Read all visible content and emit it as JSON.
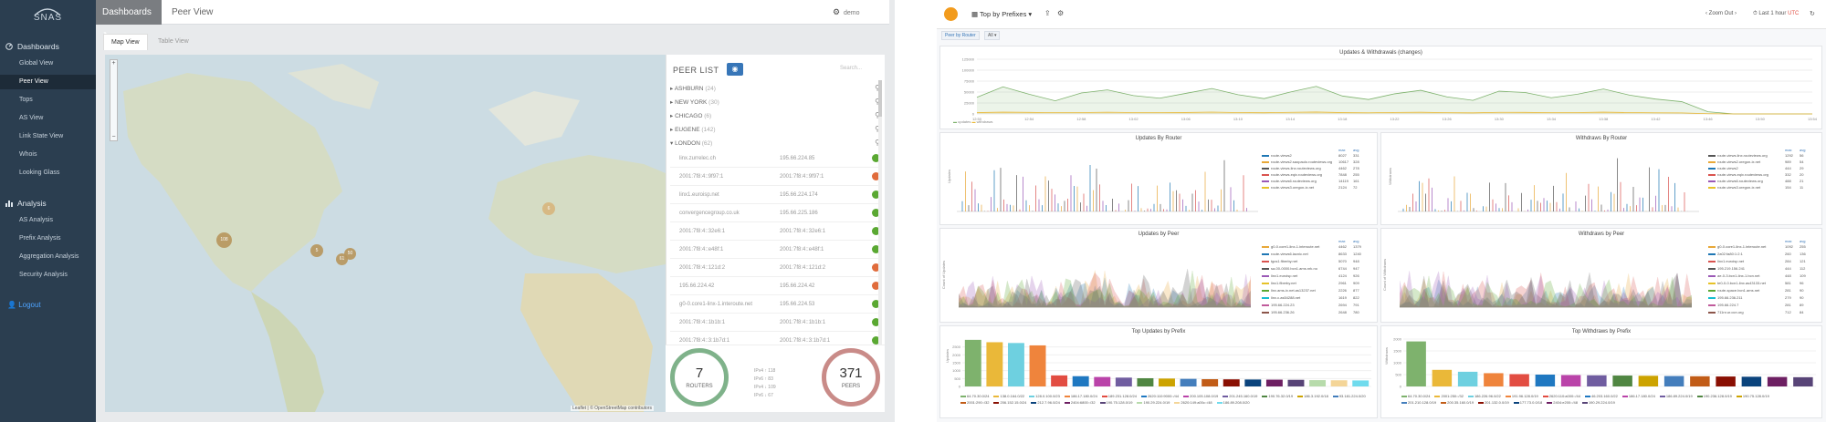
{
  "app": {
    "brand": "SNAS"
  },
  "sidebar": {
    "dashboards_label": "Dashboards",
    "items": [
      {
        "label": "Global View"
      },
      {
        "label": "Peer View"
      },
      {
        "label": "Tops"
      },
      {
        "label": "AS View"
      },
      {
        "label": "Link State View"
      },
      {
        "label": "Whois"
      },
      {
        "label": "Looking Glass"
      }
    ],
    "analysis_label": "Analysis",
    "analysis_items": [
      {
        "label": "AS Analysis"
      },
      {
        "label": "Prefix Analysis"
      },
      {
        "label": "Aggregation Analysis"
      },
      {
        "label": "Security Analysis"
      }
    ],
    "logout_label": "Logout"
  },
  "header": {
    "breadcrumb": "Dashboards",
    "title": "Peer View",
    "user": "demo"
  },
  "tabs": [
    {
      "label": "Map View"
    },
    {
      "label": "Table View"
    }
  ],
  "map": {
    "clusters": [
      "108",
      "5",
      "61",
      "50",
      "6"
    ],
    "attribution": "Leaflet | © OpenStreetMap contributors",
    "cluster_color": "#b8965c"
  },
  "peer_list": {
    "title": "PEER LIST",
    "search_placeholder": "Search...",
    "locations": [
      {
        "name": "ASHBURN",
        "count": "(24)"
      },
      {
        "name": "NEW YORK",
        "count": "(30)"
      },
      {
        "name": "CHICAGO",
        "count": "(6)"
      },
      {
        "name": "EUGENE",
        "count": "(142)"
      },
      {
        "name": "LONDON",
        "count": "(62)"
      }
    ],
    "peers": [
      {
        "name": "linx.zurrelec.ch",
        "ip": "195.66.224.85",
        "status": "#5aa832"
      },
      {
        "name": "2001:7f8:4::9f97:1",
        "ip": "2001:7f8:4::9f97:1",
        "status": "#e06c3c"
      },
      {
        "name": "linx1.euroisp.net",
        "ip": "195.66.224.174",
        "status": "#5aa832"
      },
      {
        "name": "convergencegroup.co.uk",
        "ip": "195.66.225.186",
        "status": "#5aa832"
      },
      {
        "name": "2001:7f8:4::32e6:1",
        "ip": "2001:7f8:4::32e6:1",
        "status": "#5aa832"
      },
      {
        "name": "2001:7f8:4::e48f:1",
        "ip": "2001:7f8:4::e48f:1",
        "status": "#5aa832"
      },
      {
        "name": "2001:7f8:4::121d:2",
        "ip": "2001:7f8:4::121d:2",
        "status": "#e06c3c"
      },
      {
        "name": "195.66.224.42",
        "ip": "195.66.224.42",
        "status": "#e06c3c"
      },
      {
        "name": "g0-0.core1-linx-1.interoute.net",
        "ip": "195.66.224.53",
        "status": "#5aa832"
      },
      {
        "name": "2001:7f8:4::1b1b:1",
        "ip": "2001:7f8:4::1b1b:1",
        "status": "#5aa832"
      },
      {
        "name": "2001:7f8:4::3:1b7d:1",
        "ip": "2001:7f8:4::3:1b7d:1",
        "status": "#5aa832"
      }
    ],
    "routers": {
      "value": "7",
      "label": "ROUTERS"
    },
    "peers_total": {
      "value": "371",
      "label": "PEERS"
    },
    "mini_stats": [
      "IPv4 ↑ 118",
      "IPv6 ↑ 83",
      "IPv4 ↓ 109",
      "IPv6 ↓ 67"
    ]
  },
  "grafana": {
    "dashboard_title": "Top by Prefixes",
    "zoom_label": "Zoom Out",
    "time_range": "Last 1 hour",
    "utc_label": "UTC",
    "filter_label": "Peer by Router",
    "filter_value": "All",
    "panels": {
      "updates_withdrawals": {
        "title": "Updates & Withdrawals (changes)",
        "y_ticks": [
          "125000",
          "100000",
          "75000",
          "50000",
          "25000",
          "0"
        ],
        "x_ticks": [
          "12:50",
          "12:54",
          "12:58",
          "13:02",
          "13:06",
          "13:10",
          "13:14",
          "13:18",
          "13:22",
          "13:26",
          "13:30",
          "13:34",
          "13:38",
          "13:42",
          "13:46",
          "13:50",
          "13:54"
        ],
        "legend": [
          "updates",
          "withdraws"
        ]
      },
      "updates_by_router": {
        "title": "Updates By Router",
        "ylabel": "Updates",
        "legend_headers": [
          "max",
          "avg"
        ],
        "rows": [
          {
            "name": "route-views2",
            "max": "8027",
            "avg": "331",
            "color": "#1f77b4"
          },
          {
            "name": "route-views2.saopaulo.routeviews.org",
            "max": "10617",
            "avg": "328",
            "color": "#e8a838"
          },
          {
            "name": "route-views.linx.routeviews.org",
            "max": "4462",
            "avg": "278",
            "color": "#555555"
          },
          {
            "name": "route-views.eqix.routeviews.org",
            "max": "7848",
            "avg": "255",
            "color": "#d9534f"
          },
          {
            "name": "route-views6.routeviews.org",
            "max": "14119",
            "avg": "161",
            "color": "#9b59b6"
          },
          {
            "name": "route-views3.oregon-ix.net",
            "max": "2124",
            "avg": "72",
            "color": "#e6c229"
          }
        ]
      },
      "withdraws_by_router": {
        "title": "Withdraws By Router",
        "ylabel": "Withdraws",
        "rows": [
          {
            "name": "route-views.linx.routeviews.org",
            "max": "1292",
            "avg": "56",
            "color": "#555555"
          },
          {
            "name": "route-views2.oregon-ix.net",
            "max": "989",
            "avg": "54",
            "color": "#e8a838"
          },
          {
            "name": "route-views2",
            "max": "444",
            "avg": "29",
            "color": "#1f77b4"
          },
          {
            "name": "route-views.eqix.routeviews.org",
            "max": "332",
            "avg": "20",
            "color": "#d9534f"
          },
          {
            "name": "route-views6.routeviews.org",
            "max": "488",
            "avg": "21",
            "color": "#9b59b6"
          },
          {
            "name": "route-views3.oregon-ix.net",
            "max": "154",
            "avg": "11",
            "color": "#e6c229"
          }
        ]
      },
      "updates_by_peer": {
        "title": "Updates by Peer",
        "ylabel": "Count of Updates",
        "rows": [
          {
            "name": "g0-0.core1-linx-1.interoute.net",
            "max": "4462",
            "avg": "1379",
            "color": "#e8a838"
          },
          {
            "name": "route-views6.lacnic.net",
            "max": "8633",
            "avg": "1240",
            "color": "#1f77b4"
          },
          {
            "name": "tgcs1.fiberby.net",
            "max": "5070",
            "avg": "948",
            "color": "#d9534f"
          },
          {
            "name": "sa-00-0000.bcn1.ams.nrk.no",
            "max": "6744",
            "avg": "947",
            "color": "#555555"
          },
          {
            "name": "linx1.euroisp.net",
            "max": "4124",
            "avg": "926",
            "color": "#9b59b6"
          },
          {
            "name": "linx1.fiberby.net",
            "max": "2961",
            "avg": "909",
            "color": "#e6c229"
          },
          {
            "name": "linx.ams-ix.net.as13237.net",
            "max": "2226",
            "avg": "877",
            "color": "#5aa832"
          },
          {
            "name": "linx.c.as54288.net",
            "max": "1619",
            "avg": "822",
            "color": "#17becf"
          },
          {
            "name": "195.66.224.23",
            "max": "2694",
            "avg": "791",
            "color": "#c05b9b"
          },
          {
            "name": "195.66.236.26",
            "max": "2648",
            "avg": "780",
            "color": "#8c564b"
          }
        ]
      },
      "withdraws_by_peer": {
        "title": "Withdraws by Peer",
        "ylabel": "Count of Withdraws",
        "rows": [
          {
            "name": "g0-0.core1-linx-1.interoute.net",
            "max": "1092",
            "avg": "255",
            "color": "#e8a838"
          },
          {
            "name": "2a02:fa80:1:2:1",
            "max": "260",
            "avg": "136",
            "color": "#1f77b4"
          },
          {
            "name": "linx1.euroisp.net",
            "max": "284",
            "avg": "121",
            "color": "#d9534f"
          },
          {
            "name": "195.219.156.241",
            "max": "444",
            "avg": "112",
            "color": "#555555"
          },
          {
            "name": "ae-0-3.bcn1-linx-1.bcn.net",
            "max": "448",
            "avg": "109",
            "color": "#9b59b6"
          },
          {
            "name": "te0-0-0.bcn1-linx.as43133.net",
            "max": "581",
            "avg": "96",
            "color": "#e6c229"
          },
          {
            "name": "route-space.bcn1.ams.net",
            "max": "281",
            "avg": "90",
            "color": "#5aa832"
          },
          {
            "name": "195.66.236.211",
            "max": "279",
            "avg": "90",
            "color": "#17becf"
          },
          {
            "name": "195.66.224.7",
            "max": "281",
            "avg": "89",
            "color": "#c05b9b"
          },
          {
            "name": "711nr.ur.ocn.org",
            "max": "712",
            "avg": "84",
            "color": "#8c564b"
          }
        ]
      },
      "top_updates_by_prefix": {
        "title": "Top Updates by Prefix",
        "ylabel": "Updates",
        "y_ticks": [
          "2500",
          "2000",
          "1500",
          "1000",
          "500",
          "0"
        ],
        "legend": [
          "64.70.30.0/24",
          "138.0.164.0/22",
          "128.0.100.0/23",
          "186.17.180.0/24",
          "189.231.128.0/24",
          "2620:110:9000::/44",
          "200.105.108.0/19",
          "201.245.160.0/19",
          "190.76.32.0/19",
          "186.3.192.0/18",
          "93.181.224.0/20",
          "2001:290::/32",
          "206.152.15.0/24",
          "212.7.96.0/24",
          "2404:6800::/32",
          "190.75.128.0/19",
          "190.29.224.0/19",
          "2620:149:a00c::/48",
          "186.89.208.0/20"
        ]
      },
      "top_withdraws_by_prefix": {
        "title": "Top Withdraws by Prefix",
        "ylabel": "Withdraws",
        "y_ticks": [
          "2000",
          "1500",
          "1000",
          "500",
          "0"
        ],
        "legend": [
          "64.70.30.0/24",
          "2001:250::/32",
          "186.226.96.0/22",
          "191.96.128.0/19",
          "2620:110:a000::/44",
          "46.203.160.0/22",
          "186.17.180.0/24",
          "186.89.224.0/19",
          "190.236.128.0/19",
          "190.75.128.0/19",
          "201.210.128.0/19",
          "200.35.160.0/19",
          "201.132.0.0/19",
          "177.73.0.0/18",
          "2404:e200::/48",
          "190.29.224.0/19"
        ]
      }
    }
  },
  "chart_data": [
    {
      "type": "line",
      "title": "Updates & Withdrawals (changes)",
      "x": [
        "12:50",
        "12:52",
        "12:54",
        "12:56",
        "12:58",
        "13:00",
        "13:02",
        "13:04",
        "13:06",
        "13:08",
        "13:10",
        "13:12",
        "13:14",
        "13:16",
        "13:18",
        "13:20",
        "13:22",
        "13:24",
        "13:26",
        "13:28",
        "13:30",
        "13:32",
        "13:34",
        "13:36",
        "13:38",
        "13:40",
        "13:42",
        "13:44",
        "13:46",
        "13:48",
        "13:50",
        "13:52",
        "13:54"
      ],
      "series": [
        {
          "name": "updates",
          "values": [
            38000,
            62000,
            45000,
            30000,
            48000,
            55000,
            42000,
            36000,
            47000,
            58000,
            44000,
            35000,
            50000,
            63000,
            41000,
            33000,
            46000,
            54000,
            39000,
            31000,
            52000,
            49000,
            37000,
            45000,
            57000,
            43000,
            34000,
            28000,
            5000,
            0,
            0,
            0,
            0
          ]
        },
        {
          "name": "withdraws",
          "values": [
            3000,
            4000,
            3500,
            2800,
            3200,
            3900,
            3100,
            2900,
            3300,
            4100,
            3200,
            2700,
            3600,
            4300,
            3000,
            2600,
            3400,
            3800,
            2900,
            2500,
            3700,
            3500,
            2800,
            3200,
            4000,
            3100,
            2600,
            2300,
            500,
            0,
            0,
            0,
            0
          ]
        }
      ],
      "ylim": [
        0,
        125000
      ]
    },
    {
      "type": "bar",
      "title": "Top Updates by Prefix",
      "ylabel": "Updates",
      "categories": [
        "64.70.30.0/24",
        "138.0.164.0/22",
        "128.0.100.0/23",
        "186.17.180.0/24",
        "189.231.128.0/24",
        "2620:110:9000::/44",
        "200.105.108.0/19",
        "201.245.160.0/19",
        "190.76.32.0/19",
        "186.3.192.0/18",
        "93.181.224.0/20",
        "2001:290::/32",
        "206.152.15.0/24",
        "212.7.96.0/24",
        "2404:6800::/32",
        "190.75.128.0/19",
        "190.29.224.0/19",
        "2620:149:a00c::/48",
        "186.89.208.0/20"
      ],
      "values": [
        2950,
        2800,
        2750,
        2600,
        700,
        650,
        600,
        560,
        520,
        500,
        480,
        460,
        450,
        440,
        430,
        420,
        400,
        390,
        380
      ],
      "colors": [
        "#7eb26d",
        "#eab839",
        "#6ed0e0",
        "#ef843c",
        "#e24d42",
        "#1f78c1",
        "#ba43a9",
        "#705da0",
        "#508642",
        "#cca300",
        "#447ebc",
        "#c15c17",
        "#890f02",
        "#0a437c",
        "#6d1f62",
        "#584477",
        "#b7dbab",
        "#f4d598",
        "#70dbed"
      ],
      "ylim": [
        0,
        3000
      ]
    },
    {
      "type": "bar",
      "title": "Top Withdraws by Prefix",
      "ylabel": "Withdraws",
      "categories": [
        "64.70.30.0/24",
        "2001:250::/32",
        "186.226.96.0/22",
        "191.96.128.0/19",
        "2620:110:a000::/44",
        "46.203.160.0/22",
        "186.17.180.0/24",
        "186.89.224.0/19",
        "190.236.128.0/19",
        "190.75.128.0/19",
        "201.210.128.0/19",
        "200.35.160.0/19",
        "201.132.0.0/19",
        "177.73.0.0/18",
        "2404:e200::/48",
        "190.29.224.0/19"
      ],
      "values": [
        1900,
        700,
        620,
        560,
        520,
        500,
        480,
        470,
        460,
        450,
        440,
        430,
        420,
        410,
        400,
        390
      ],
      "colors": [
        "#7eb26d",
        "#eab839",
        "#6ed0e0",
        "#ef843c",
        "#e24d42",
        "#1f78c1",
        "#ba43a9",
        "#705da0",
        "#508642",
        "#cca300",
        "#447ebc",
        "#c15c17",
        "#890f02",
        "#0a437c",
        "#6d1f62",
        "#584477"
      ],
      "ylim": [
        0,
        2000
      ]
    }
  ]
}
